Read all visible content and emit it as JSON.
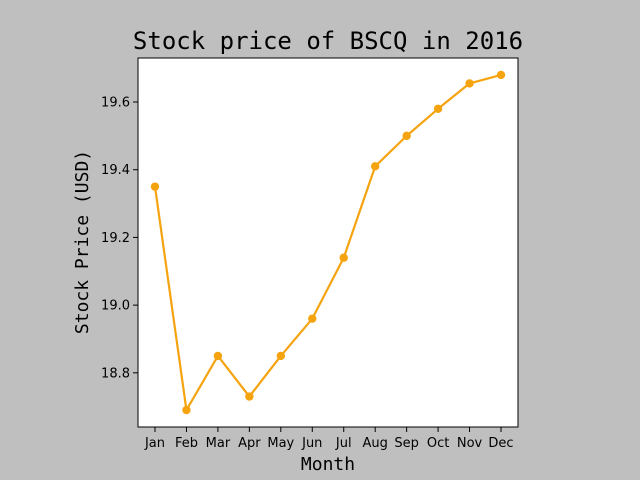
{
  "chart_data": {
    "type": "line",
    "title": "Stock price of BSCQ in 2016",
    "xlabel": "Month",
    "ylabel": "Stock Price (USD)",
    "categories": [
      "Jan",
      "Feb",
      "Mar",
      "Apr",
      "May",
      "Jun",
      "Jul",
      "Aug",
      "Sep",
      "Oct",
      "Nov",
      "Dec"
    ],
    "values": [
      19.35,
      18.69,
      18.85,
      18.73,
      18.85,
      18.96,
      19.14,
      19.41,
      19.5,
      19.58,
      19.655,
      19.68
    ],
    "ylim": [
      18.64,
      19.73
    ],
    "yticks": [
      18.8,
      19.0,
      19.2,
      19.4,
      19.6
    ],
    "grid": false,
    "line_color": "#f5a30f",
    "background_color": "#bfbfbf",
    "plot_background_color": "#ffffff"
  }
}
